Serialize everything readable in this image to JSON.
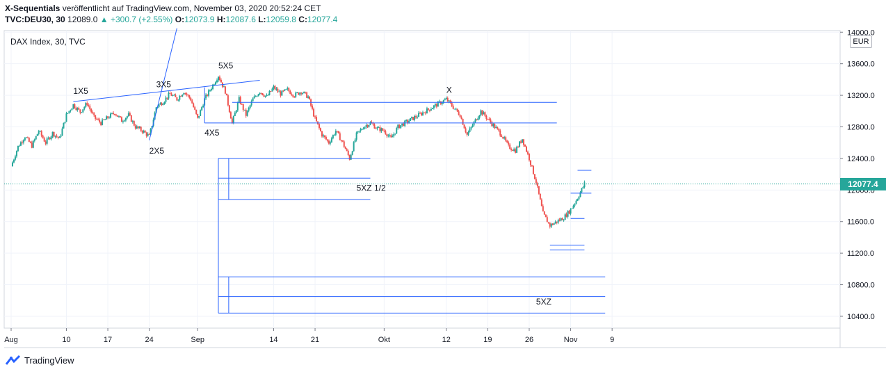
{
  "header": {
    "author": "X-Sequentials",
    "published": "veröffentlicht auf TradingView.com, November 03, 2020 20:52:24 CET",
    "symbol": "TVC:DEU30, 30",
    "last": "12089.0",
    "change": "▲ +300.7 (+2.55%)",
    "o_label": "O:",
    "o_value": "12073.9",
    "h_label": "H:",
    "h_value": "12087.6",
    "l_label": "L:",
    "l_value": "12059.8",
    "c_label": "C:",
    "c_value": "12077.4"
  },
  "pane_title": "DAX Index, 30, TVC",
  "currency": "EUR",
  "current_price_label": "12077.4",
  "footer": {
    "brand": "TradingView",
    "logo_icon": "tradingview-logo-icon"
  },
  "colors": {
    "up": "#26a69a",
    "down": "#ef5350",
    "drawing": "#2962ff",
    "grid": "#f0f3fa"
  },
  "chart_data": {
    "type": "candlestick",
    "title": "DAX Index, 30, TVC",
    "ylim": [
      10250,
      14020
    ],
    "y_ticks": [
      10400,
      10800,
      11200,
      11600,
      12000,
      12400,
      12800,
      13200,
      13600,
      14000
    ],
    "y_tick_labels": [
      "10400.0",
      "10800.0",
      "11200.0",
      "11600.0",
      "12000.0",
      "12400.0",
      "12800.0",
      "13200.0",
      "13600.0",
      "14000.0"
    ],
    "xlim": [
      0,
      119
    ],
    "x_ticks": [
      {
        "x": 0,
        "label": "Aug"
      },
      {
        "x": 8,
        "label": "10"
      },
      {
        "x": 14,
        "label": "17"
      },
      {
        "x": 20,
        "label": "24"
      },
      {
        "x": 27,
        "label": "Sep"
      },
      {
        "x": 38,
        "label": "14"
      },
      {
        "x": 44,
        "label": "21"
      },
      {
        "x": 54,
        "label": "Okt"
      },
      {
        "x": 63,
        "label": "12"
      },
      {
        "x": 69,
        "label": "19"
      },
      {
        "x": 75,
        "label": "26"
      },
      {
        "x": 81,
        "label": "Nov"
      },
      {
        "x": 87,
        "label": "9"
      }
    ],
    "price_path": [
      [
        0,
        12300
      ],
      [
        1,
        12550
      ],
      [
        2,
        12680
      ],
      [
        3,
        12560
      ],
      [
        4,
        12750
      ],
      [
        5,
        12600
      ],
      [
        6,
        12720
      ],
      [
        7,
        12650
      ],
      [
        8,
        12950
      ],
      [
        9,
        13080
      ],
      [
        10,
        12990
      ],
      [
        11,
        13100
      ],
      [
        12,
        12920
      ],
      [
        13,
        12850
      ],
      [
        14,
        12920
      ],
      [
        15,
        12980
      ],
      [
        16,
        12880
      ],
      [
        17,
        12950
      ],
      [
        18,
        12800
      ],
      [
        19,
        12750
      ],
      [
        20,
        12680
      ],
      [
        21,
        13050
      ],
      [
        22,
        13120
      ],
      [
        23,
        13220
      ],
      [
        24,
        13150
      ],
      [
        25,
        13250
      ],
      [
        26,
        13150
      ],
      [
        27,
        12900
      ],
      [
        28,
        13150
      ],
      [
        29,
        13300
      ],
      [
        30,
        13450
      ],
      [
        31,
        13250
      ],
      [
        32,
        12850
      ],
      [
        33,
        13150
      ],
      [
        34,
        12950
      ],
      [
        35,
        13150
      ],
      [
        36,
        13250
      ],
      [
        37,
        13180
      ],
      [
        38,
        13300
      ],
      [
        39,
        13220
      ],
      [
        40,
        13270
      ],
      [
        41,
        13200
      ],
      [
        42,
        13250
      ],
      [
        43,
        13180
      ],
      [
        44,
        12900
      ],
      [
        45,
        12700
      ],
      [
        46,
        12600
      ],
      [
        47,
        12750
      ],
      [
        48,
        12600
      ],
      [
        49,
        12400
      ],
      [
        50,
        12700
      ],
      [
        51,
        12800
      ],
      [
        52,
        12850
      ],
      [
        53,
        12780
      ],
      [
        54,
        12750
      ],
      [
        55,
        12650
      ],
      [
        56,
        12800
      ],
      [
        57,
        12850
      ],
      [
        58,
        12900
      ],
      [
        59,
        12950
      ],
      [
        60,
        13000
      ],
      [
        61,
        13050
      ],
      [
        62,
        13100
      ],
      [
        63,
        13150
      ],
      [
        64,
        13050
      ],
      [
        65,
        12950
      ],
      [
        66,
        12700
      ],
      [
        67,
        12850
      ],
      [
        68,
        13000
      ],
      [
        69,
        12900
      ],
      [
        70,
        12800
      ],
      [
        71,
        12700
      ],
      [
        72,
        12550
      ],
      [
        73,
        12500
      ],
      [
        74,
        12650
      ],
      [
        75,
        12400
      ],
      [
        76,
        12100
      ],
      [
        77,
        11700
      ],
      [
        78,
        11550
      ],
      [
        79,
        11600
      ],
      [
        80,
        11650
      ],
      [
        81,
        11750
      ],
      [
        82,
        11900
      ],
      [
        83,
        12077
      ]
    ],
    "annotations": [
      {
        "label": "1X5",
        "x": 9,
        "y": 13220
      },
      {
        "label": "2X5",
        "x": 20,
        "y": 12460
      },
      {
        "label": "3X5",
        "x": 21,
        "y": 13300
      },
      {
        "label": "4X5",
        "x": 28,
        "y": 12690
      },
      {
        "label": "5X5",
        "x": 30,
        "y": 13540
      },
      {
        "label": "X",
        "x": 63,
        "y": 13230
      },
      {
        "label": "5XZ  1/2",
        "x": 50,
        "y": 11990
      },
      {
        "label": "5XZ",
        "x": 76,
        "y": 10550
      }
    ],
    "drawings": [
      {
        "type": "trendline",
        "points": [
          [
            9,
            13120
          ],
          [
            36,
            13390
          ]
        ]
      },
      {
        "type": "trendline",
        "points": [
          [
            20,
            12630
          ],
          [
            24,
            14050
          ]
        ]
      },
      {
        "type": "level",
        "x_from": 32,
        "x_to": 79,
        "y": 13110
      },
      {
        "type": "level",
        "x_from": 28,
        "x_to": 79,
        "y": 12850
      },
      {
        "type": "level",
        "x_from": 30,
        "x_to": 52,
        "y": 12400
      },
      {
        "type": "level",
        "x_from": 30,
        "x_to": 52,
        "y": 12150
      },
      {
        "type": "level",
        "x_from": 30,
        "x_to": 52,
        "y": 11880
      },
      {
        "type": "level",
        "x_from": 30,
        "x_to": 86,
        "y": 10900
      },
      {
        "type": "level",
        "x_from": 30,
        "x_to": 86,
        "y": 10650
      },
      {
        "type": "level",
        "x_from": 30,
        "x_to": 86,
        "y": 10440
      },
      {
        "type": "level",
        "x_from": 78,
        "x_to": 83,
        "y": 11300
      },
      {
        "type": "level",
        "x_from": 78,
        "x_to": 83,
        "y": 11240
      },
      {
        "type": "level",
        "x_from": 82,
        "x_to": 84,
        "y": 12250
      },
      {
        "type": "level",
        "x_from": 81,
        "x_to": 84,
        "y": 11960
      },
      {
        "type": "level",
        "x_from": 81,
        "x_to": 83,
        "y": 11640
      }
    ],
    "grid": true
  }
}
